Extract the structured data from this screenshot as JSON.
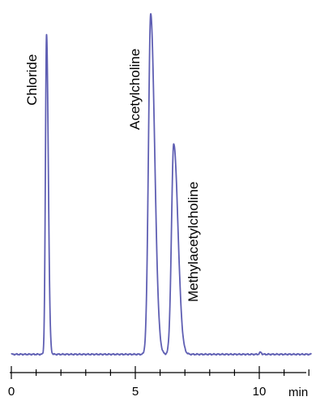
{
  "chart_data": {
    "type": "line",
    "title": "",
    "xlabel": "min",
    "ylabel": "",
    "xlim": [
      0,
      12
    ],
    "ylim": [
      0,
      1
    ],
    "x_ticks": [
      0,
      5,
      10
    ],
    "x_tick_labels": [
      "0",
      "5",
      "10"
    ],
    "grid": false,
    "legend": "none",
    "line_color": "#5f5fb3",
    "peaks": [
      {
        "name": "Chloride",
        "retention": 1.42,
        "height": 0.94,
        "width_left": 0.045,
        "width_right": 0.07
      },
      {
        "name": "Acetylcholine",
        "retention": 5.62,
        "height": 1.0,
        "width_left": 0.09,
        "width_right": 0.16
      },
      {
        "name": "Methylacetylcholine",
        "retention": 6.55,
        "height": 0.62,
        "width_left": 0.09,
        "width_right": 0.17
      }
    ],
    "minor_bumps": [
      {
        "retention": 10.05,
        "height": 0.006
      }
    ]
  }
}
